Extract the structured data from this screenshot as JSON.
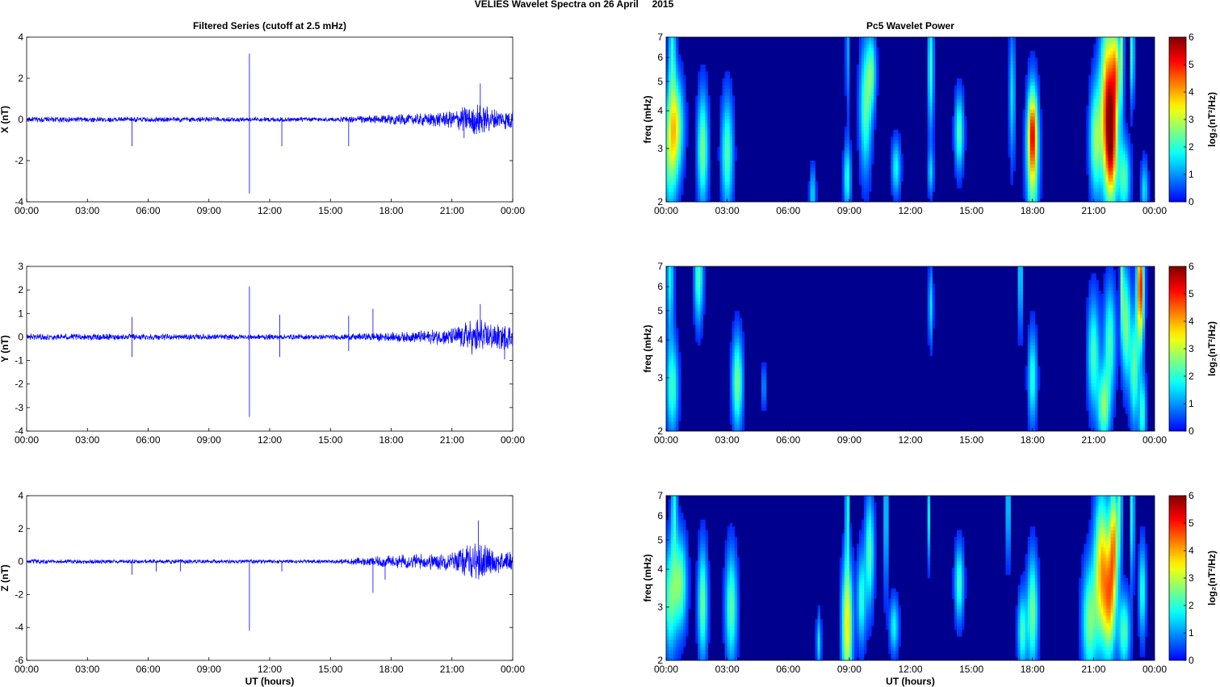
{
  "suptitle": "VELIES Wavelet Spectra on 26 April     2015",
  "colors": {
    "trace": "#0000ff",
    "background": "#00008f",
    "axis": "#000000"
  },
  "chart_data": [
    {
      "type": "line",
      "title": "Filtered Series (cutoff at 2.5 mHz)",
      "ylabel": "X (nT)",
      "xlabel": "",
      "xticks": [
        "00:00",
        "03:00",
        "06:00",
        "09:00",
        "12:00",
        "15:00",
        "18:00",
        "21:00",
        "00:00"
      ],
      "xlim": [
        0,
        24
      ],
      "ylim": [
        -4,
        4
      ],
      "yticks": [
        -4,
        -2,
        0,
        2,
        4
      ],
      "noise_envelope": [
        [
          0,
          0.15
        ],
        [
          15,
          0.12
        ],
        [
          19,
          0.3
        ],
        [
          21,
          0.45
        ],
        [
          22.2,
          0.9
        ],
        [
          23,
          0.55
        ],
        [
          24,
          0.5
        ]
      ],
      "spikes": [
        [
          5.2,
          -1.3
        ],
        [
          11.0,
          3.2
        ],
        [
          11.0,
          -3.6
        ],
        [
          12.6,
          -1.3
        ],
        [
          15.9,
          -1.3
        ],
        [
          22.4,
          1.75
        ],
        [
          21.6,
          -0.9
        ]
      ]
    },
    {
      "type": "line",
      "title": "",
      "ylabel": "Y (nT)",
      "xlabel": "",
      "xticks": [
        "00:00",
        "03:00",
        "06:00",
        "09:00",
        "12:00",
        "15:00",
        "18:00",
        "21:00",
        "00:00"
      ],
      "xlim": [
        0,
        24
      ],
      "ylim": [
        -4,
        3
      ],
      "yticks": [
        -4,
        -3,
        -2,
        -1,
        0,
        1,
        2,
        3
      ],
      "noise_envelope": [
        [
          0,
          0.15
        ],
        [
          15,
          0.12
        ],
        [
          19,
          0.25
        ],
        [
          21,
          0.4
        ],
        [
          22.3,
          0.9
        ],
        [
          23,
          0.6
        ],
        [
          24,
          0.55
        ]
      ],
      "spikes": [
        [
          5.2,
          0.85
        ],
        [
          5.2,
          -0.85
        ],
        [
          11.0,
          2.15
        ],
        [
          11.0,
          -3.4
        ],
        [
          12.5,
          0.95
        ],
        [
          12.5,
          -0.85
        ],
        [
          15.9,
          0.9
        ],
        [
          15.9,
          -0.6
        ],
        [
          17.1,
          1.2
        ],
        [
          22.4,
          1.4
        ],
        [
          23.6,
          -0.95
        ]
      ]
    },
    {
      "type": "line",
      "title": "",
      "ylabel": "Z (nT)",
      "xlabel": "UT (hours)",
      "xticks": [
        "00:00",
        "03:00",
        "06:00",
        "09:00",
        "12:00",
        "15:00",
        "18:00",
        "21:00",
        "00:00"
      ],
      "xlim": [
        0,
        24
      ],
      "ylim": [
        -6,
        4
      ],
      "yticks": [
        -6,
        -4,
        -2,
        0,
        2,
        4
      ],
      "noise_envelope": [
        [
          0,
          0.15
        ],
        [
          15,
          0.12
        ],
        [
          18,
          0.4
        ],
        [
          21,
          0.6
        ],
        [
          22.3,
          1.3
        ],
        [
          23,
          0.8
        ],
        [
          24,
          0.6
        ]
      ],
      "spikes": [
        [
          5.2,
          -0.8
        ],
        [
          6.4,
          -0.6
        ],
        [
          7.6,
          -0.6
        ],
        [
          11.0,
          -4.2
        ],
        [
          12.6,
          -0.6
        ],
        [
          17.1,
          -1.9
        ],
        [
          17.7,
          -1.1
        ],
        [
          22.3,
          2.5
        ]
      ]
    },
    {
      "type": "heatmap",
      "title": "Pc5 Wavelet Power",
      "ylabel": "freq (mHz)",
      "xlabel": "",
      "xticks": [
        "00:00",
        "03:00",
        "06:00",
        "09:00",
        "12:00",
        "15:00",
        "18:00",
        "21:00",
        "00:00"
      ],
      "xlim": [
        0,
        24
      ],
      "ylim": [
        2,
        7
      ],
      "yscale": "log",
      "yticks": [
        2,
        3,
        4,
        5,
        6,
        7
      ],
      "colorbar": {
        "label": "log₂(nT²/Hz)",
        "ticks": [
          0,
          1,
          2,
          3,
          4,
          5,
          6
        ],
        "range": [
          0,
          6
        ]
      },
      "blobs": [
        [
          0.2,
          2.9,
          0.25,
          0.32,
          2.3
        ],
        [
          0.5,
          3.6,
          0.25,
          0.25,
          2.6
        ],
        [
          0.3,
          6.5,
          0.12,
          0.3,
          1.8
        ],
        [
          1.8,
          3.0,
          0.18,
          0.3,
          2.6
        ],
        [
          3.0,
          2.9,
          0.2,
          0.3,
          2.3
        ],
        [
          7.2,
          2.1,
          0.1,
          0.15,
          1.6
        ],
        [
          8.9,
          2.4,
          0.12,
          0.18,
          2.0
        ],
        [
          8.9,
          6.5,
          0.05,
          0.35,
          1.5
        ],
        [
          9.8,
          4.1,
          0.2,
          0.35,
          2.3
        ],
        [
          10.1,
          5.4,
          0.15,
          0.2,
          2.0
        ],
        [
          11.3,
          2.6,
          0.15,
          0.15,
          1.8
        ],
        [
          13.0,
          5.6,
          0.1,
          0.35,
          2.1
        ],
        [
          13.0,
          2.5,
          0.1,
          0.12,
          1.4
        ],
        [
          14.4,
          3.4,
          0.15,
          0.2,
          2.3
        ],
        [
          18.0,
          2.8,
          0.2,
          0.35,
          3.3
        ],
        [
          18.0,
          3.5,
          0.15,
          0.2,
          2.6
        ],
        [
          17.0,
          4.5,
          0.1,
          0.35,
          1.6
        ],
        [
          21.1,
          3.2,
          0.2,
          0.3,
          2.6
        ],
        [
          21.7,
          4.2,
          0.25,
          0.45,
          4.7
        ],
        [
          21.9,
          3.0,
          0.2,
          0.3,
          3.3
        ],
        [
          22.1,
          5.4,
          0.15,
          0.25,
          3.1
        ],
        [
          22.5,
          2.4,
          0.2,
          0.2,
          2.3
        ],
        [
          22.4,
          6.8,
          0.06,
          0.4,
          2.3
        ],
        [
          22.9,
          6.2,
          0.06,
          0.25,
          2.6
        ],
        [
          23.5,
          2.2,
          0.12,
          0.15,
          1.6
        ]
      ]
    },
    {
      "type": "heatmap",
      "title": "",
      "ylabel": "freq (mHz)",
      "xlabel": "",
      "xticks": [
        "00:00",
        "03:00",
        "06:00",
        "09:00",
        "12:00",
        "15:00",
        "18:00",
        "21:00",
        "00:00"
      ],
      "xlim": [
        0,
        24
      ],
      "ylim": [
        2,
        7
      ],
      "yscale": "log",
      "yticks": [
        2,
        3,
        4,
        5,
        6,
        7
      ],
      "colorbar": {
        "label": "log₂(nT²/Hz)",
        "ticks": [
          0,
          1,
          2,
          3,
          4,
          5,
          6
        ],
        "range": [
          0,
          6
        ]
      },
      "blobs": [
        [
          0.3,
          2.8,
          0.2,
          0.25,
          2.2
        ],
        [
          0.2,
          6.5,
          0.12,
          0.3,
          1.8
        ],
        [
          1.6,
          6.5,
          0.15,
          0.25,
          2.3
        ],
        [
          3.5,
          2.9,
          0.18,
          0.25,
          2.6
        ],
        [
          4.8,
          2.8,
          0.06,
          0.12,
          1.3
        ],
        [
          13.0,
          5.2,
          0.08,
          0.2,
          1.6
        ],
        [
          17.4,
          6.6,
          0.06,
          0.3,
          2.1
        ],
        [
          18.0,
          3.0,
          0.15,
          0.25,
          2.0
        ],
        [
          21.0,
          3.6,
          0.2,
          0.3,
          2.2
        ],
        [
          21.8,
          4.0,
          0.2,
          0.3,
          2.2
        ],
        [
          21.5,
          2.4,
          0.2,
          0.2,
          2.6
        ],
        [
          22.6,
          4.5,
          0.15,
          0.3,
          2.6
        ],
        [
          23.3,
          6.0,
          0.12,
          0.3,
          5.2
        ],
        [
          23.0,
          3.2,
          0.15,
          0.3,
          2.4
        ],
        [
          23.4,
          2.3,
          0.12,
          0.2,
          2.1
        ],
        [
          22.4,
          6.6,
          0.06,
          0.3,
          2.3
        ]
      ]
    },
    {
      "type": "heatmap",
      "title": "",
      "ylabel": "freq (mHz)",
      "xlabel": "UT (hours)",
      "xticks": [
        "00:00",
        "03:00",
        "06:00",
        "09:00",
        "12:00",
        "15:00",
        "18:00",
        "21:00",
        "00:00"
      ],
      "xlim": [
        0,
        24
      ],
      "ylim": [
        2,
        7
      ],
      "yscale": "log",
      "yticks": [
        2,
        3,
        4,
        5,
        6,
        7
      ],
      "colorbar": {
        "label": "log₂(nT²/Hz)",
        "ticks": [
          0,
          1,
          2,
          3,
          4,
          5,
          6
        ],
        "range": [
          0,
          6
        ]
      },
      "blobs": [
        [
          0.2,
          3.2,
          0.22,
          0.3,
          2.3
        ],
        [
          0.7,
          3.6,
          0.22,
          0.25,
          2.5
        ],
        [
          0.4,
          6.5,
          0.1,
          0.3,
          1.8
        ],
        [
          1.8,
          3.1,
          0.16,
          0.3,
          2.5
        ],
        [
          3.2,
          3.0,
          0.2,
          0.3,
          2.4
        ],
        [
          7.5,
          2.3,
          0.08,
          0.15,
          1.6
        ],
        [
          8.9,
          2.6,
          0.18,
          0.35,
          3.6
        ],
        [
          8.9,
          6.5,
          0.06,
          0.35,
          2.0
        ],
        [
          9.6,
          3.2,
          0.15,
          0.25,
          2.0
        ],
        [
          10.0,
          4.6,
          0.15,
          0.3,
          2.3
        ],
        [
          10.8,
          6.0,
          0.06,
          0.4,
          2.0
        ],
        [
          11.2,
          2.6,
          0.15,
          0.15,
          1.8
        ],
        [
          12.9,
          6.0,
          0.06,
          0.25,
          1.6
        ],
        [
          14.4,
          3.6,
          0.15,
          0.2,
          2.2
        ],
        [
          16.8,
          6.5,
          0.06,
          0.3,
          2.0
        ],
        [
          17.5,
          2.5,
          0.15,
          0.2,
          2.2
        ],
        [
          18.0,
          2.9,
          0.18,
          0.3,
          2.6
        ],
        [
          20.8,
          2.7,
          0.25,
          0.3,
          2.5
        ],
        [
          21.4,
          4.0,
          0.25,
          0.4,
          3.8
        ],
        [
          21.8,
          3.1,
          0.2,
          0.3,
          3.2
        ],
        [
          22.0,
          5.0,
          0.15,
          0.3,
          3.6
        ],
        [
          22.5,
          2.5,
          0.2,
          0.2,
          2.3
        ],
        [
          22.3,
          6.8,
          0.06,
          0.35,
          2.2
        ],
        [
          22.9,
          6.2,
          0.06,
          0.35,
          2.4
        ],
        [
          23.4,
          3.4,
          0.12,
          0.25,
          2.0
        ]
      ]
    }
  ]
}
